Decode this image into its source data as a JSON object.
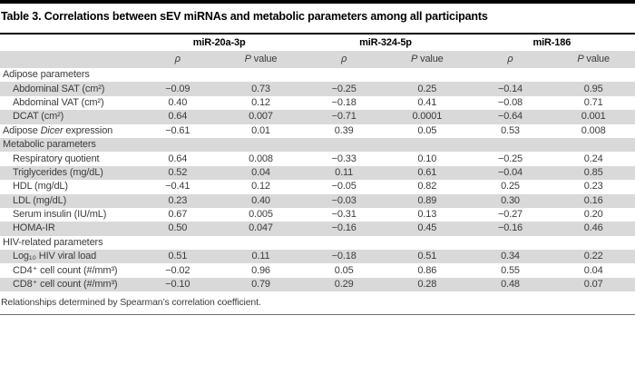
{
  "title": "Table 3. Correlations between sEV miRNAs and metabolic parameters among all participants",
  "header": {
    "groups": [
      "miR-20a-3p",
      "miR-324-5p",
      "miR-186"
    ],
    "rho_symbol": "ρ",
    "p_italic": "P",
    "p_rest": " value"
  },
  "sections": [
    {
      "label": "Adipose parameters",
      "rows": [
        {
          "label": "Abdominal SAT (cm²)",
          "indent": true,
          "values": [
            "−0.09",
            "0.73",
            "−0.25",
            "0.25",
            "−0.14",
            "0.95"
          ]
        },
        {
          "label": "Abdominal VAT (cm²)",
          "indent": true,
          "values": [
            "0.40",
            "0.12",
            "−0.18",
            "0.41",
            "−0.08",
            "0.71"
          ]
        },
        {
          "label": "DCAT (cm²)",
          "indent": true,
          "values": [
            "0.64",
            "0.007",
            "−0.71",
            "0.0001",
            "−0.64",
            "0.001"
          ]
        },
        {
          "label_segments": [
            {
              "t": "Adipose ",
              "i": false
            },
            {
              "t": "Dicer",
              "i": true
            },
            {
              "t": " expression",
              "i": false
            }
          ],
          "indent": false,
          "values": [
            "−0.61",
            "0.01",
            "0.39",
            "0.05",
            "0.53",
            "0.008"
          ]
        }
      ]
    },
    {
      "label": "Metabolic parameters",
      "rows": [
        {
          "label": "Respiratory quotient",
          "indent": true,
          "values": [
            "0.64",
            "0.008",
            "−0.33",
            "0.10",
            "−0.25",
            "0.24"
          ]
        },
        {
          "label": "Triglycerides (mg/dL)",
          "indent": true,
          "values": [
            "0.52",
            "0.04",
            "0.11",
            "0.61",
            "−0.04",
            "0.85"
          ]
        },
        {
          "label": "HDL (mg/dL)",
          "indent": true,
          "values": [
            "−0.41",
            "0.12",
            "−0.05",
            "0.82",
            "0.25",
            "0.23"
          ]
        },
        {
          "label": "LDL (mg/dL)",
          "indent": true,
          "values": [
            "0.23",
            "0.40",
            "−0.03",
            "0.89",
            "0.30",
            "0.16"
          ]
        },
        {
          "label": "Serum insulin (IU/mL)",
          "indent": true,
          "values": [
            "0.67",
            "0.005",
            "−0.31",
            "0.13",
            "−0.27",
            "0.20"
          ]
        },
        {
          "label": "HOMA-IR",
          "indent": true,
          "values": [
            "0.50",
            "0.047",
            "−0.16",
            "0.45",
            "−0.16",
            "0.46"
          ]
        }
      ]
    },
    {
      "label": "HIV-related parameters",
      "rows": [
        {
          "label": "Log₁₀ HIV viral load",
          "indent": true,
          "values": [
            "0.51",
            "0.11",
            "−0.18",
            "0.51",
            "0.34",
            "0.22"
          ]
        },
        {
          "label": "CD4⁺ cell count (#/mm³)",
          "indent": true,
          "values": [
            "−0.02",
            "0.96",
            "0.05",
            "0.86",
            "0.55",
            "0.04"
          ]
        },
        {
          "label": "CD8⁺ cell count (#/mm³)",
          "indent": true,
          "values": [
            "−0.10",
            "0.79",
            "0.29",
            "0.28",
            "0.48",
            "0.07"
          ]
        }
      ]
    }
  ],
  "footnote": "Relationships determined by Spearman’s correlation coefficient.",
  "colors": {
    "stripe_gray": "#d9d9d9",
    "rule_black": "#000000",
    "rule_bottom_gray": "#6f6f6f",
    "body_text": "#3c3c3c"
  }
}
